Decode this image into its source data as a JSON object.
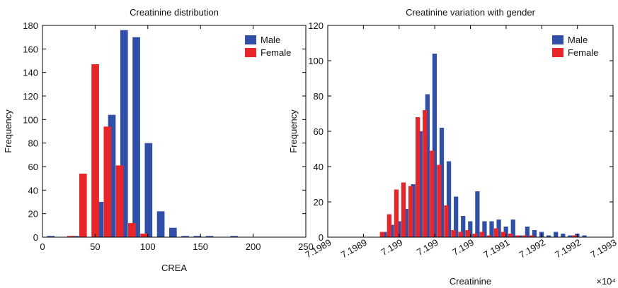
{
  "chart_data": [
    {
      "type": "bar",
      "title": "Creatinine distribution",
      "x_label": "CREA",
      "y_label": "Frequency",
      "x": [
        5.8,
        17.4,
        29,
        40.6,
        52.2,
        63.8,
        75.4,
        87,
        98.6,
        110.2,
        121.8,
        133.4,
        145,
        156.6,
        168.2,
        179.8,
        191.4,
        203,
        214.6,
        226.2
      ],
      "series": [
        {
          "name": "Male",
          "color": "#3050a8",
          "values": [
            1,
            0,
            1,
            0,
            30,
            104,
            176,
            170,
            80,
            22,
            8,
            1,
            1,
            1,
            0,
            1,
            0,
            0,
            0,
            0
          ]
        },
        {
          "name": "Female",
          "color": "#e8262a",
          "values": [
            0,
            0,
            1,
            54,
            147,
            94,
            61,
            12,
            3,
            0,
            0,
            0,
            0,
            0,
            0,
            0,
            0,
            0,
            0,
            0
          ]
        }
      ],
      "xlim": [
        0,
        250
      ],
      "xticks": [
        0,
        50,
        100,
        150,
        200,
        250
      ],
      "ylim": [
        0,
        180
      ],
      "yticks": [
        0,
        20,
        40,
        60,
        80,
        100,
        120,
        140,
        160,
        180
      ],
      "legend": "upper right"
    },
    {
      "type": "bar",
      "title": "Creatinine variation with gender",
      "x_label": "Creatinine",
      "y_label": "Frequency",
      "x_multiplier": "×10⁴",
      "x": [
        71989.28,
        71989.38,
        71989.48,
        71989.58,
        71989.68,
        71989.78,
        71989.88,
        71989.98,
        71990.08,
        71990.18,
        71990.28,
        71990.38,
        71990.48,
        71990.58,
        71990.68,
        71990.78,
        71990.88,
        71990.98,
        71991.08,
        71991.18,
        71991.28,
        71991.38,
        71991.48,
        71991.58,
        71991.68,
        71991.78,
        71991.88,
        71991.98,
        71992.08,
        71992.18,
        71992.28
      ],
      "series": [
        {
          "name": "Male",
          "color": "#3050a8",
          "values": [
            3,
            7,
            9,
            16,
            30,
            60,
            81,
            104,
            62,
            43,
            23,
            12,
            9,
            26,
            9,
            9,
            10,
            6,
            10,
            1,
            6,
            4,
            3,
            1,
            3,
            2,
            1,
            2,
            1,
            0,
            0
          ]
        },
        {
          "name": "Female",
          "color": "#e8262a",
          "values": [
            3,
            13,
            27,
            31,
            29,
            68,
            72,
            49,
            41,
            18,
            4,
            3,
            4,
            2,
            3,
            1,
            5,
            3,
            2,
            1,
            1,
            1,
            0,
            0,
            0,
            0,
            0,
            1,
            0,
            0,
            0
          ]
        }
      ],
      "xlim": [
        71988.5,
        71992.5
      ],
      "xticks": [
        {
          "value": 71988.5,
          "label": "7.1989"
        },
        {
          "value": 71989,
          "label": "7.1989"
        },
        {
          "value": 71989.5,
          "label": "7.199"
        },
        {
          "value": 71990,
          "label": "7.199"
        },
        {
          "value": 71990.5,
          "label": "7.199"
        },
        {
          "value": 71991,
          "label": "7.1991"
        },
        {
          "value": 71991.5,
          "label": "7.1992"
        },
        {
          "value": 71992,
          "label": "7.1992"
        },
        {
          "value": 71992.5,
          "label": "7.1993"
        }
      ],
      "ylim": [
        0,
        120
      ],
      "yticks": [
        0,
        20,
        40,
        60,
        80,
        100,
        120
      ],
      "legend": "upper right"
    }
  ]
}
